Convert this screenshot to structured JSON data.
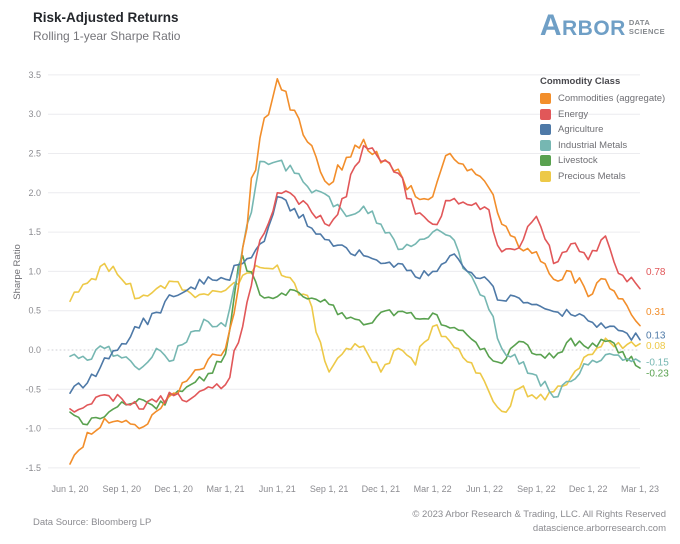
{
  "header": {
    "title": "Risk-Adjusted Returns",
    "subtitle": "Rolling 1-year Sharpe Ratio",
    "logo": {
      "initial": "A",
      "rest": "RBOR",
      "tagline1": "DATA",
      "tagline2": "SCIENCE",
      "brand_color": "#6f9fc6",
      "tagline_color": "#85898e"
    }
  },
  "footer": {
    "source": "Data Source: Bloomberg LP",
    "copyright": "© 2023 Arbor Research & Trading, LLC. All Rights Reserved",
    "website": "datascience.arborresearch.com"
  },
  "chart_data": {
    "type": "line",
    "title": "Risk-Adjusted Returns",
    "subtitle": "Rolling 1-year Sharpe Ratio",
    "xlabel": "",
    "ylabel": "Sharpe Ratio",
    "ylim": [
      -1.5,
      3.5
    ],
    "grid": "horizontal",
    "zero_line": "dotted",
    "legend_position": "top-right",
    "legend_title": "Commodity Class",
    "yticks": [
      3.5,
      3.0,
      2.5,
      2.0,
      1.5,
      1.0,
      0.5,
      0.0,
      -0.5,
      -1.0,
      -1.5
    ],
    "xticklabels": [
      "Jun 1, 20",
      "Sep 1, 20",
      "Dec 1, 20",
      "Mar 1, 21",
      "Jun 1, 21",
      "Sep 1, 21",
      "Dec 1, 21",
      "Mar 1, 22",
      "Jun 1, 22",
      "Sep 1, 22",
      "Dec 1, 22",
      "Mar 1, 23"
    ],
    "x_monthly_range": [
      "Jun 2020",
      "Mar 2023"
    ],
    "series": [
      {
        "name": "Commodities (aggregate)",
        "color": "#F28E2B",
        "end_label": "0.31",
        "values": [
          -1.45,
          -1.05,
          -0.87,
          -0.92,
          -1.0,
          -0.78,
          -0.55,
          -0.33,
          -0.12,
          0.02,
          1.3,
          2.7,
          3.45,
          3.05,
          2.6,
          2.1,
          2.45,
          2.68,
          2.38,
          2.3,
          1.95,
          1.95,
          2.5,
          2.28,
          2.15,
          1.6,
          1.3,
          1.25,
          0.9,
          1.0,
          0.68,
          0.9,
          0.65,
          0.31
        ]
      },
      {
        "name": "Energy",
        "color": "#E15759",
        "end_label": "0.78",
        "values": [
          -0.75,
          -0.7,
          -0.57,
          -0.62,
          -0.75,
          -0.66,
          -0.58,
          -0.62,
          -0.47,
          -0.44,
          0.3,
          1.4,
          2.0,
          1.95,
          1.75,
          1.58,
          1.95,
          2.6,
          2.4,
          2.25,
          1.73,
          1.6,
          1.9,
          1.85,
          1.82,
          1.25,
          1.3,
          1.7,
          1.1,
          1.35,
          1.15,
          1.45,
          0.95,
          0.78
        ]
      },
      {
        "name": "Agriculture",
        "color": "#4E79A7",
        "end_label": "0.13",
        "values": [
          -0.55,
          -0.42,
          -0.1,
          0.08,
          0.28,
          0.48,
          0.68,
          0.8,
          0.93,
          0.9,
          1.1,
          1.35,
          1.95,
          1.8,
          1.55,
          1.4,
          1.3,
          1.2,
          1.1,
          1.1,
          0.93,
          1.0,
          1.2,
          1.0,
          0.93,
          0.63,
          0.66,
          0.58,
          0.49,
          0.45,
          0.37,
          0.28,
          0.24,
          0.13
        ]
      },
      {
        "name": "Industrial Metals",
        "color": "#76B7B2",
        "end_label": "-0.15",
        "values": [
          -0.08,
          -0.13,
          0.02,
          -0.1,
          -0.25,
          0.02,
          -0.13,
          0.23,
          0.36,
          0.3,
          1.3,
          2.4,
          2.4,
          2.25,
          2.0,
          1.95,
          1.7,
          1.83,
          1.6,
          1.28,
          1.35,
          1.5,
          1.45,
          1.0,
          0.68,
          0.02,
          -0.18,
          -0.32,
          -0.6,
          -0.4,
          -0.19,
          -0.06,
          -0.13,
          -0.15
        ]
      },
      {
        "name": "Livestock",
        "color": "#59A14F",
        "end_label": "-0.23",
        "values": [
          -0.79,
          -0.95,
          -0.85,
          -0.66,
          -0.62,
          -0.75,
          -0.57,
          -0.44,
          -0.3,
          -0.05,
          1.2,
          0.7,
          0.68,
          0.76,
          0.66,
          0.58,
          0.4,
          0.32,
          0.48,
          0.49,
          0.4,
          0.47,
          0.28,
          0.19,
          0.02,
          -0.17,
          0.11,
          -0.06,
          -0.1,
          0.15,
          0.02,
          0.11,
          -0.02,
          -0.23
        ]
      },
      {
        "name": "Precious Metals",
        "color": "#EDC948",
        "end_label": "0.08",
        "values": [
          0.62,
          0.85,
          1.1,
          0.9,
          0.66,
          0.78,
          0.87,
          0.72,
          0.7,
          0.76,
          0.95,
          1.05,
          1.08,
          0.85,
          0.55,
          -0.28,
          0.02,
          0.05,
          -0.28,
          0.02,
          -0.19,
          0.3,
          0.11,
          -0.15,
          -0.4,
          -0.78,
          -0.49,
          -0.62,
          -0.53,
          -0.35,
          -0.06,
          0.15,
          0.02,
          0.08
        ]
      }
    ]
  }
}
